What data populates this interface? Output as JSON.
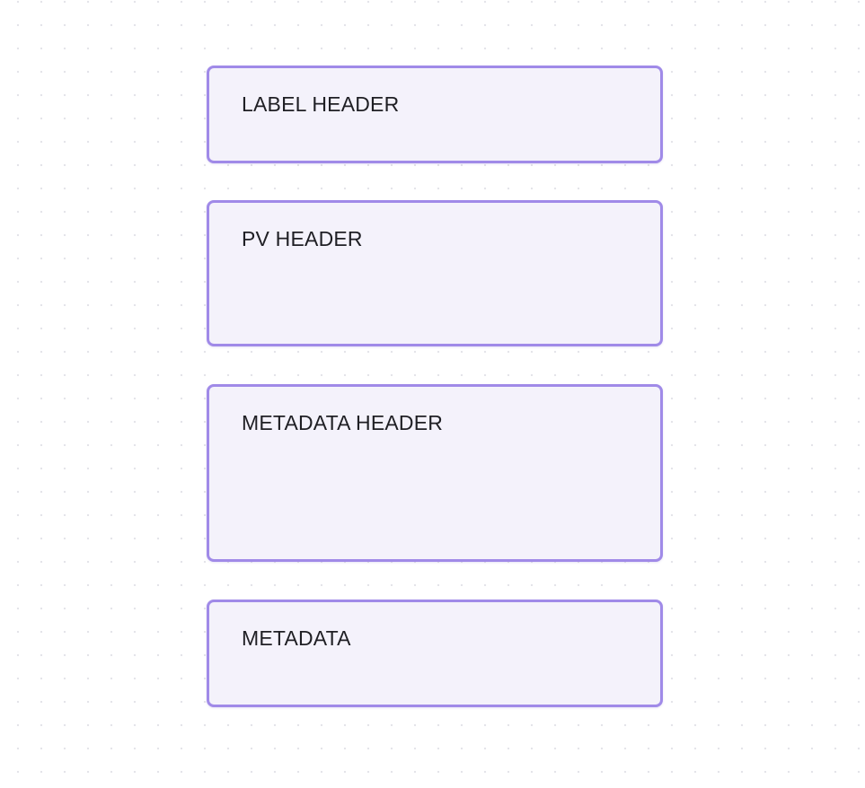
{
  "blocks": [
    {
      "label": "LABEL HEADER"
    },
    {
      "label": "PV HEADER"
    },
    {
      "label": "METADATA HEADER"
    },
    {
      "label": "METADATA"
    }
  ],
  "colors": {
    "block_border": "#a08ae8",
    "block_fill": "#f4f2fb",
    "text": "#1f1f24",
    "canvas_dots": "#e2e2e8"
  }
}
